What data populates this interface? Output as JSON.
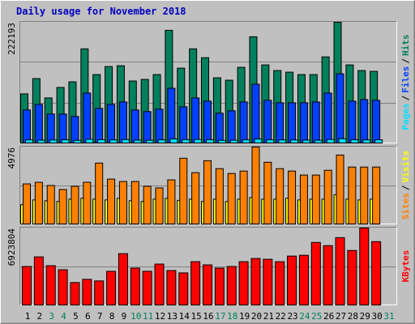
{
  "title": "Daily usage for November 2018",
  "chart_data": [
    {
      "type": "bar",
      "ylim": [
        0,
        222193
      ],
      "yticks": [
        222193
      ],
      "grid": true,
      "series": [
        {
          "name": "Pages",
          "color": "#00e0ff",
          "values": [
            7120,
            6480,
            6910,
            7350,
            6230,
            8140,
            7460,
            7010,
            7690,
            6520,
            6380,
            7240,
            8820,
            7530,
            7910,
            7380,
            6290,
            6410,
            7180,
            8570,
            7260,
            7030,
            6950,
            6610,
            6480,
            7830,
            9240,
            7370,
            7120,
            7290,
            null
          ]
        },
        {
          "name": "Files",
          "color": "#0040ff",
          "values": [
            61800,
            72100,
            54450,
            54450,
            50030,
            92700,
            64750,
            72100,
            76520,
            61800,
            58860,
            63280,
            101530,
            67690,
            83880,
            77990,
            55920,
            60330,
            76520,
            108890,
            79460,
            75050,
            75050,
            75050,
            76520,
            92700,
            128020,
            77990,
            80930,
            79460,
            null
          ]
        },
        {
          "name": "Hits",
          "color": "#00805c",
          "values": [
            91230,
            119190,
            83880,
            103010,
            113310,
            173640,
            126550,
            141260,
            142740,
            114780,
            117720,
            126550,
            207480,
            138320,
            173640,
            157450,
            120660,
            116250,
            139790,
            195710,
            144210,
            133910,
            130960,
            126550,
            126550,
            158920,
            222193,
            144210,
            133910,
            132440,
            null
          ]
        }
      ],
      "separator": "/"
    },
    {
      "type": "bar",
      "ylim": [
        0,
        4976
      ],
      "yticks": [
        4976
      ],
      "grid": true,
      "series": [
        {
          "name": "Sites",
          "color": "#ff8000",
          "values": [
            2616,
            2719,
            2514,
            2257,
            2462,
            2719,
            3950,
            2924,
            2770,
            2770,
            2462,
            2360,
            2873,
            4258,
            3335,
            4104,
            3591,
            3283,
            3437,
            4976,
            4001,
            3591,
            3437,
            3181,
            3181,
            3488,
            4463,
            3694,
            3694,
            3694,
            null
          ]
        },
        {
          "name": "Visits",
          "color": "#ffff00",
          "values": [
            1283,
            1590,
            1540,
            1490,
            1640,
            1700,
            1640,
            1590,
            1690,
            1540,
            1490,
            1640,
            1690,
            1560,
            1640,
            1490,
            1640,
            1490,
            1640,
            1740,
            1640,
            1640,
            1700,
            1590,
            1640,
            1640,
            1920,
            1640,
            1590,
            1640,
            null
          ]
        }
      ],
      "separator": "/"
    },
    {
      "type": "bar",
      "ylim": [
        0,
        6923804
      ],
      "yticks": [
        6923804
      ],
      "grid": true,
      "categories": [
        "1",
        "2",
        "3",
        "4",
        "5",
        "6",
        "7",
        "8",
        "9",
        "10",
        "11",
        "12",
        "13",
        "14",
        "15",
        "16",
        "17",
        "18",
        "19",
        "20",
        "21",
        "22",
        "23",
        "24",
        "25",
        "26",
        "27",
        "28",
        "29",
        "30",
        "31"
      ],
      "category_colors": [
        "#000000",
        "#000000",
        "#00805c",
        "#00805c",
        "#000000",
        "#000000",
        "#000000",
        "#000000",
        "#000000",
        "#00805c",
        "#00805c",
        "#000000",
        "#000000",
        "#000000",
        "#000000",
        "#000000",
        "#00805c",
        "#00805c",
        "#000000",
        "#000000",
        "#000000",
        "#000000",
        "#000000",
        "#00805c",
        "#00805c",
        "#000000",
        "#000000",
        "#000000",
        "#000000",
        "#000000",
        "#00805c"
      ],
      "series": [
        {
          "name": "KBytes",
          "color": "#ff0000",
          "values": [
            3497571,
            4354119,
            3568950,
            3212055,
            2069991,
            2355507,
            2212749,
            3069297,
            4639635,
            3354813,
            3069297,
            3711708,
            3140676,
            2926539,
            3925845,
            3640329,
            3354813,
            3497571,
            3925845,
            4211361,
            4139982,
            3925845,
            4425498,
            4496877,
            5638941,
            5353425,
            6067215,
            4925151,
            6923804,
            5710320,
            null
          ]
        }
      ]
    }
  ]
}
